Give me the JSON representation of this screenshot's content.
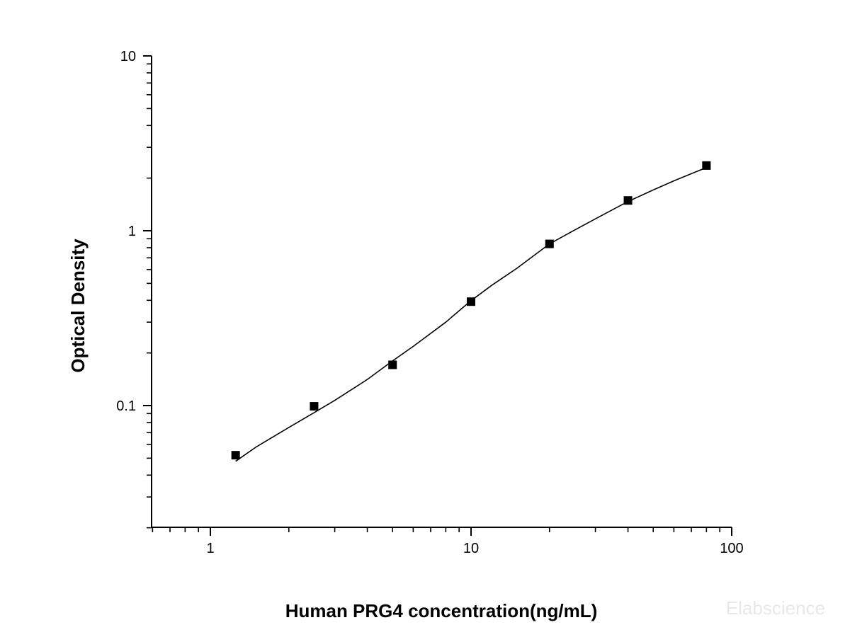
{
  "chart_data": {
    "type": "scatter",
    "xscale": "log",
    "yscale": "log",
    "xlabel": "Human PRG4 concentration(ng/mL)",
    "ylabel": "Optical Density",
    "xlim": [
      0.6,
      100
    ],
    "ylim": [
      0.02,
      10
    ],
    "x_ticks": [
      {
        "value": 1,
        "label": "1"
      },
      {
        "value": 10,
        "label": "10"
      },
      {
        "value": 100,
        "label": "100"
      }
    ],
    "y_ticks": [
      {
        "value": 0.1,
        "label": "0.1"
      },
      {
        "value": 1,
        "label": "1"
      },
      {
        "value": 10,
        "label": "10"
      }
    ],
    "grid": false,
    "legend": "none",
    "series": [
      {
        "marker": "square",
        "color": "#000000",
        "x": [
          1.25,
          2.5,
          5,
          10,
          20,
          40,
          80
        ],
        "y": [
          0.052,
          0.099,
          0.171,
          0.393,
          0.841,
          1.49,
          2.36
        ]
      }
    ],
    "fit_curve": {
      "type": "4PL",
      "color": "#000000",
      "x": [
        1.25,
        1.5,
        2,
        2.5,
        3,
        4,
        5,
        6,
        8,
        10,
        12,
        15,
        20,
        25,
        30,
        40,
        50,
        60,
        70,
        80
      ],
      "y": [
        0.048,
        0.058,
        0.075,
        0.091,
        0.107,
        0.141,
        0.18,
        0.218,
        0.3,
        0.398,
        0.487,
        0.61,
        0.841,
        1.01,
        1.17,
        1.47,
        1.71,
        1.93,
        2.12,
        2.3
      ]
    },
    "watermark": "Elabscience"
  }
}
